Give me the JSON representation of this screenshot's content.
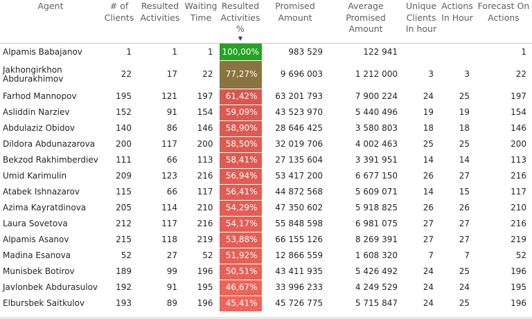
{
  "headers": {
    "agent": "Agent",
    "clients": "# of Clients",
    "resulted": "Resulted Activities",
    "waiting": "Waiting Time",
    "pct": "Resulted Activities %",
    "promised": "Promised Amount",
    "avg_promised": "Average Promised Amount",
    "unique": "Unique Clients In hour",
    "actions": "Actions In Hour",
    "forecast": "Forecast On Actions"
  },
  "sort_indicator": "▼",
  "rows": [
    {
      "agent": "Alpamis Babajanov",
      "clients": "1",
      "resulted": "1",
      "waiting": "1",
      "pct": "100,00%",
      "pct_color": "#25a325",
      "promised": "983 529",
      "avg": "122 941",
      "unique": "",
      "actions": "",
      "forecast": "1"
    },
    {
      "agent": "Jakhongirkhon Abdurakhimov",
      "clients": "22",
      "resulted": "17",
      "waiting": "22",
      "pct": "77,27%",
      "pct_color": "#8a7440",
      "promised": "9 696 003",
      "avg": "1 212 000",
      "unique": "3",
      "actions": "3",
      "forecast": "22"
    },
    {
      "agent": "Farhod Mannopov",
      "clients": "195",
      "resulted": "121",
      "waiting": "197",
      "pct": "61,42%",
      "pct_color": "#d9574d",
      "promised": "63 201 793",
      "avg": "7 900 224",
      "unique": "24",
      "actions": "25",
      "forecast": "197"
    },
    {
      "agent": "Asliddin Narziev",
      "clients": "152",
      "resulted": "91",
      "waiting": "154",
      "pct": "59,09%",
      "pct_color": "#dd5a50",
      "promised": "43 523 970",
      "avg": "5 440 496",
      "unique": "19",
      "actions": "19",
      "forecast": "154"
    },
    {
      "agent": "Abdulaziz Obidov",
      "clients": "140",
      "resulted": "86",
      "waiting": "146",
      "pct": "58,90%",
      "pct_color": "#dd5a50",
      "promised": "28 646 425",
      "avg": "3 580 803",
      "unique": "18",
      "actions": "18",
      "forecast": "146"
    },
    {
      "agent": "Dildora Abdunazarova",
      "clients": "200",
      "resulted": "117",
      "waiting": "200",
      "pct": "58,50%",
      "pct_color": "#de5b51",
      "promised": "32 019 706",
      "avg": "4 002 463",
      "unique": "25",
      "actions": "25",
      "forecast": "200"
    },
    {
      "agent": "Bekzod Rakhimberdiev",
      "clients": "111",
      "resulted": "66",
      "waiting": "113",
      "pct": "58,41%",
      "pct_color": "#de5b51",
      "promised": "27 135 604",
      "avg": "3 391 951",
      "unique": "14",
      "actions": "14",
      "forecast": "113"
    },
    {
      "agent": "Umid Karimulin",
      "clients": "209",
      "resulted": "123",
      "waiting": "216",
      "pct": "56,94%",
      "pct_color": "#e05c52",
      "promised": "53 417 200",
      "avg": "6 677 150",
      "unique": "26",
      "actions": "27",
      "forecast": "216"
    },
    {
      "agent": "Atabek Ishnazarov",
      "clients": "115",
      "resulted": "66",
      "waiting": "117",
      "pct": "56,41%",
      "pct_color": "#e15d53",
      "promised": "44 872 568",
      "avg": "5 609 071",
      "unique": "14",
      "actions": "15",
      "forecast": "117"
    },
    {
      "agent": "Azima Kayratdinova",
      "clients": "205",
      "resulted": "114",
      "waiting": "210",
      "pct": "54,29%",
      "pct_color": "#e35e54",
      "promised": "47 350 602",
      "avg": "5 918 825",
      "unique": "26",
      "actions": "26",
      "forecast": "210"
    },
    {
      "agent": "Laura Sovetova",
      "clients": "212",
      "resulted": "117",
      "waiting": "216",
      "pct": "54,17%",
      "pct_color": "#e35e54",
      "promised": "55 848 598",
      "avg": "6 981 075",
      "unique": "27",
      "actions": "27",
      "forecast": "216"
    },
    {
      "agent": "Alpamis Asanov",
      "clients": "215",
      "resulted": "118",
      "waiting": "219",
      "pct": "53,88%",
      "pct_color": "#e45f55",
      "promised": "66 155 126",
      "avg": "8 269 391",
      "unique": "27",
      "actions": "27",
      "forecast": "219"
    },
    {
      "agent": "Madina Esanova",
      "clients": "52",
      "resulted": "27",
      "waiting": "52",
      "pct": "51,92%",
      "pct_color": "#e66056",
      "promised": "12 866 559",
      "avg": "1 608 320",
      "unique": "7",
      "actions": "7",
      "forecast": "52"
    },
    {
      "agent": "Munisbek Botirov",
      "clients": "189",
      "resulted": "99",
      "waiting": "196",
      "pct": "50,51%",
      "pct_color": "#e86157",
      "promised": "43 411 935",
      "avg": "5 426 492",
      "unique": "24",
      "actions": "25",
      "forecast": "196"
    },
    {
      "agent": "Javlonbek Abdurasulov",
      "clients": "192",
      "resulted": "91",
      "waiting": "195",
      "pct": "46,67%",
      "pct_color": "#ed6459",
      "promised": "33 996 233",
      "avg": "4 249 529",
      "unique": "24",
      "actions": "24",
      "forecast": "195"
    },
    {
      "agent": "Elbursbek Saitkulov",
      "clients": "193",
      "resulted": "89",
      "waiting": "196",
      "pct": "45,41%",
      "pct_color": "#ef655a",
      "promised": "45 726 775",
      "avg": "5 715 847",
      "unique": "24",
      "actions": "25",
      "forecast": "196"
    }
  ]
}
